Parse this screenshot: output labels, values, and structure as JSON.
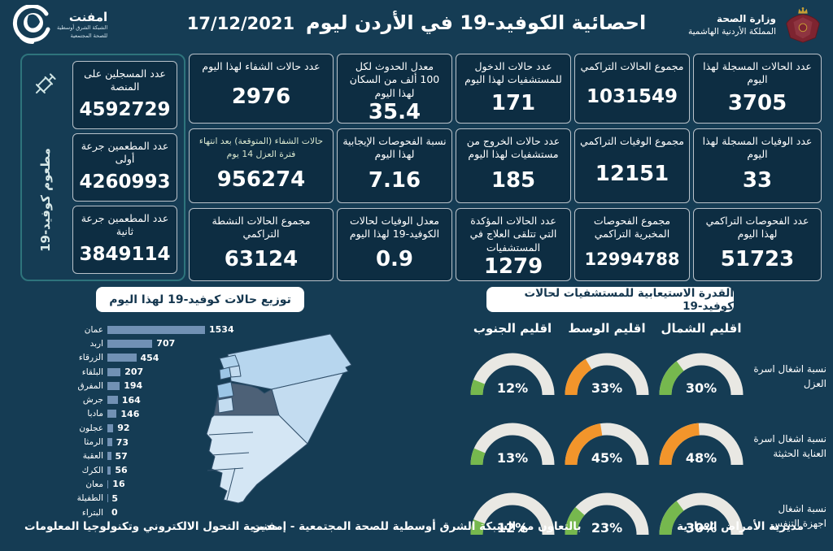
{
  "colors": {
    "background": "#153C54",
    "card_bg": "#0D2D42",
    "card_border": "#B9C2CA",
    "panel_border": "#2E747C",
    "bar_fill": "#7191B4",
    "gauge_green": "#76B84E",
    "gauge_orange": "#F2952B",
    "gauge_track": "#E9E8E3",
    "map_light": "#D4E6F4",
    "map_medium": "#B7D6EE",
    "map_dark": "#4D6177"
  },
  "header": {
    "title": "احصائية الكوفيد-19 في الأردن ليوم",
    "date": "17/12/2021",
    "ministry_line1": "وزارة الصحة",
    "ministry_line2": "المملكة الأردنية الهاشمية",
    "logo_name": "امفنت",
    "logo_sub1": "الشبكة الشرق أوسطية",
    "logo_sub2": "للصحة المجتمعية"
  },
  "stats_columns": [
    {
      "cards": [
        {
          "label": "عدد الحالات المسجلة لهذا اليوم",
          "value": "3705"
        },
        {
          "label": "عدد الوفيات المسجلة لهذا اليوم",
          "value": "33"
        },
        {
          "label": "عدد الفحوصات التراكمي لهذا اليوم",
          "value": "51723"
        }
      ]
    },
    {
      "cards": [
        {
          "label": "مجموع الحالات التراكمي",
          "value": "1031549"
        },
        {
          "label": "مجموع الوفيات التراكمي",
          "value": "12151"
        },
        {
          "label": "مجموع الفحوصات المخبرية التراكمي",
          "value": "12994788"
        }
      ]
    },
    {
      "cards": [
        {
          "label": "عدد حالات الدخول للمستشفيات لهذا اليوم",
          "value": "171"
        },
        {
          "label": "عدد حالات الخروج من مستشفيات لهذا اليوم",
          "value": "185"
        },
        {
          "label": "عدد الحالات المؤكدة التي تتلقى العلاج في المستشفيات",
          "value": "1279"
        }
      ]
    },
    {
      "cards": [
        {
          "label": "معدل الحدوث لكل 100 ألف من السكان لهذا اليوم",
          "value": "35.4"
        },
        {
          "label": "نسبة الفحوصات الإيجابية لهذا اليوم",
          "value": "7.16"
        },
        {
          "label": "معدل الوفيات لحالات الكوفيد-19 لهذا اليوم",
          "value": "0.9"
        }
      ]
    },
    {
      "cards": [
        {
          "label": "عدد حالات الشفاء لهذا اليوم",
          "value": "2976"
        },
        {
          "label": "حالات الشفاء (المتوقعة) بعد انتهاء فترة العزل 14 يوم",
          "value": "956274",
          "small": true
        },
        {
          "label": "مجموع الحالات النشطة التراكمي",
          "value": "63124"
        }
      ]
    }
  ],
  "vaccination": {
    "vertical_label": "مطعوم كوفيد-19",
    "cards": [
      {
        "label": "عدد المسجلين على المنصة",
        "value": "4592729"
      },
      {
        "label": "عدد المطعمين جرعة أولى",
        "value": "4260993"
      },
      {
        "label": "عدد المطعمين جرعة ثانية",
        "value": "3849114"
      }
    ]
  },
  "chart_data": [
    {
      "type": "bar",
      "orientation": "horizontal",
      "title": "توزيع حالات كوفيد-19 لهذا اليوم",
      "categories": [
        "عمان",
        "اربد",
        "الزرقاء",
        "البلقاء",
        "المفرق",
        "جرش",
        "مادبا",
        "عجلون",
        "الرمثا",
        "العقبة",
        "الكرك",
        "معان",
        "الطفيلة",
        "البتراء"
      ],
      "values": [
        1534,
        707,
        454,
        207,
        194,
        164,
        146,
        92,
        73,
        57,
        56,
        16,
        5,
        0
      ],
      "xlim": [
        0,
        1600
      ],
      "value_labels": true,
      "grid": false
    },
    {
      "type": "gauge",
      "title": "القدرة الاستيعابية للمستشفيات لحالات كوفيد-19",
      "columns": [
        "اقليم الشمال",
        "اقليم الوسط",
        "اقليم الجنوب"
      ],
      "rows": [
        {
          "label": "نسبة اشغال اسرة العزل",
          "values_pct": [
            30,
            33,
            12
          ],
          "colors": [
            "green",
            "orange",
            "green"
          ]
        },
        {
          "label": "نسبة اشغال اسرة العناية الحثيثة",
          "values_pct": [
            48,
            45,
            13
          ],
          "colors": [
            "orange",
            "orange",
            "green"
          ]
        },
        {
          "label": "نسبة اشغال اجهزة التنفس",
          "values_pct": [
            30,
            23,
            12
          ],
          "colors": [
            "green",
            "green",
            "green"
          ]
        }
      ],
      "range_pct": [
        0,
        100
      ]
    }
  ],
  "footer": {
    "right": "مديرية الأمراض السارية",
    "center": "بالتعاون مع الشبكة الشرق أوسطية للصحة المجتمعية - إمفنت",
    "left": "مديرية التحول الالكتروني وتكنولوجيا المعلومات"
  }
}
